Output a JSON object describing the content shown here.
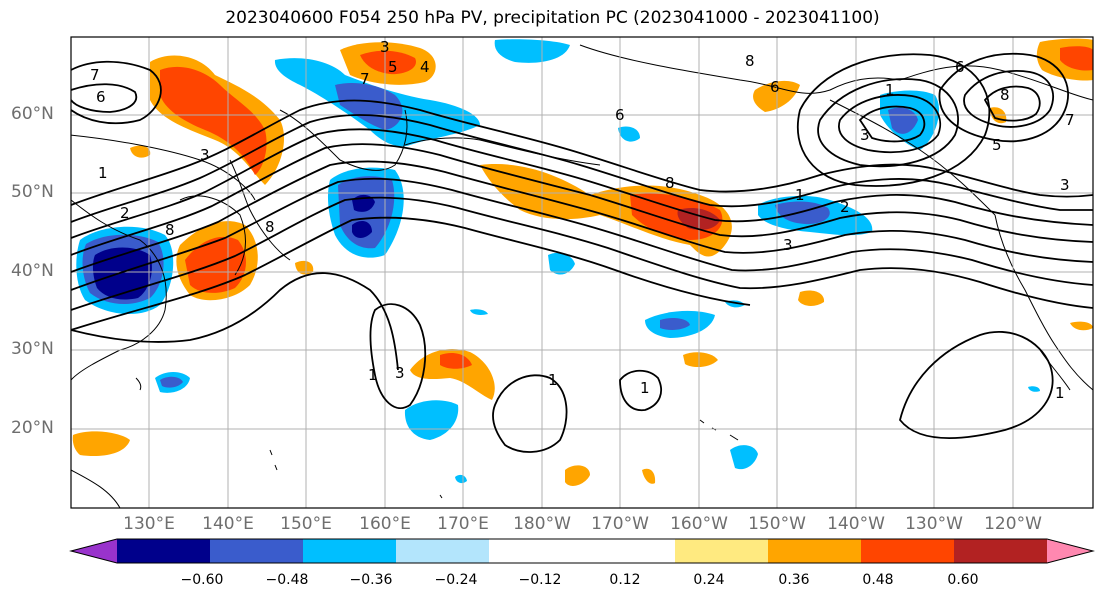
{
  "title": "2023040600 F054 250 hPa PV, precipitation PC (2023041000 - 2023041100)",
  "latitude_labels": [
    "60°N",
    "50°N",
    "40°N",
    "30°N",
    "20°N"
  ],
  "longitude_labels": [
    "130°E",
    "140°E",
    "150°E",
    "160°E",
    "170°E",
    "180°W",
    "170°W",
    "160°W",
    "150°W",
    "140°W",
    "130°W",
    "120°W"
  ],
  "colorbar": {
    "colors": [
      "#9933cc",
      "#00008b",
      "#3a5ccc",
      "#00bfff",
      "#b3e5fc",
      "#ffffff",
      "#ffffff",
      "#ffea80",
      "#ffa500",
      "#ff4500",
      "#b22222",
      "#ff88b0"
    ],
    "tick_labels": [
      "−0.60",
      "−0.48",
      "−0.36",
      "−0.24",
      "−0.12",
      "0.12",
      "0.24",
      "0.36",
      "0.48",
      "0.60"
    ]
  },
  "contour_labels": [
    "1",
    "2",
    "3",
    "4",
    "5",
    "6",
    "7",
    "8"
  ]
}
